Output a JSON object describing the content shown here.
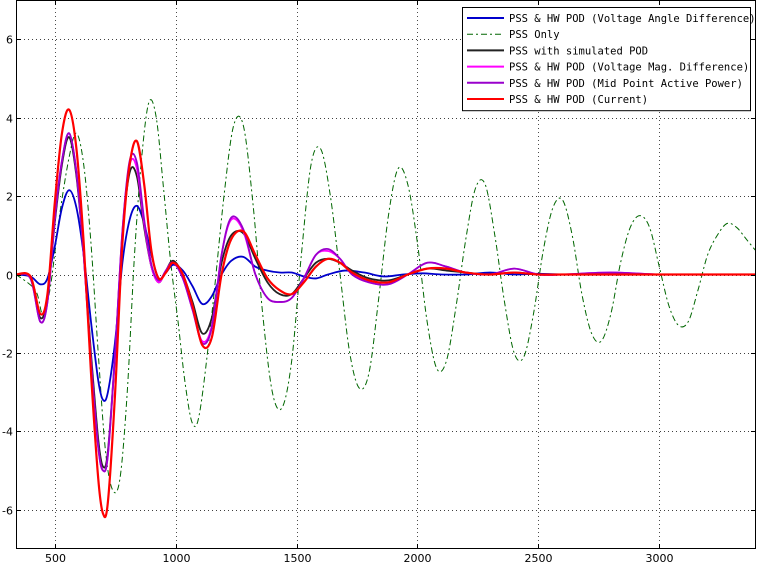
{
  "chart_data": {
    "type": "line",
    "title": "",
    "xlabel": "",
    "ylabel": "",
    "xlim": [
      340,
      3400
    ],
    "ylim": [
      -7,
      7
    ],
    "xticks": [
      500,
      1000,
      1500,
      2000,
      2500,
      3000
    ],
    "yticks": [
      -6,
      -4,
      -2,
      0,
      2,
      4,
      6
    ],
    "xtick_labels": [
      "500",
      "1000",
      "1500",
      "2000",
      "2500",
      "3000"
    ],
    "ytick_labels": [
      "-6",
      "-4",
      "-2",
      "0",
      "2",
      "4",
      "6"
    ],
    "grid": true,
    "legend_position": "top-right",
    "series": [
      {
        "name": "PSS & HW POD (Voltage Angle Difference)",
        "color": "#0000cc",
        "dash": "solid",
        "x": [
          340,
          400,
          440,
          470,
          500,
          530,
          560,
          590,
          620,
          650,
          680,
          700,
          720,
          750,
          780,
          810,
          840,
          870,
          900,
          930,
          960,
          990,
          1030,
          1070,
          1110,
          1150,
          1190,
          1230,
          1280,
          1330,
          1380,
          1430,
          1480,
          1530,
          1580,
          1630,
          1700,
          1780,
          1860,
          1940,
          2020,
          2100,
          2200,
          2300,
          2400,
          2500,
          2600,
          2800,
          3000,
          3200,
          3400
        ],
        "y": [
          0,
          -0.05,
          -0.25,
          -0.1,
          0.7,
          1.7,
          2.15,
          1.7,
          0.5,
          -1.2,
          -2.7,
          -3.2,
          -3.0,
          -1.7,
          0.3,
          1.4,
          1.75,
          1.3,
          0.5,
          -0.1,
          0.05,
          0.25,
          0.1,
          -0.3,
          -0.75,
          -0.55,
          0.0,
          0.35,
          0.45,
          0.2,
          0.1,
          0.05,
          0.05,
          -0.05,
          -0.1,
          0.0,
          0.1,
          0.05,
          -0.05,
          0.0,
          0.03,
          0.0,
          0.0,
          0.05,
          0.0,
          0.02,
          0.0,
          0.0,
          0.0,
          0.0,
          0.0
        ]
      },
      {
        "name": "PSS Only",
        "color": "#006600",
        "dash": "6,3,2,3",
        "x": [
          340,
          420,
          450,
          480,
          520,
          560,
          590,
          620,
          650,
          680,
          710,
          740,
          770,
          800,
          830,
          860,
          890,
          920,
          950,
          980,
          1010,
          1040,
          1070,
          1100,
          1150,
          1200,
          1240,
          1280,
          1320,
          1360,
          1400,
          1440,
          1480,
          1520,
          1560,
          1600,
          1640,
          1680,
          1720,
          1760,
          1800,
          1840,
          1880,
          1920,
          1960,
          2000,
          2040,
          2080,
          2120,
          2160,
          2200,
          2240,
          2280,
          2320,
          2360,
          2400,
          2440,
          2480,
          2520,
          2560,
          2600,
          2640,
          2680,
          2720,
          2760,
          2800,
          2840,
          2880,
          2920,
          2960,
          3000,
          3040,
          3080,
          3120,
          3160,
          3200,
          3240,
          3280,
          3320,
          3360,
          3400
        ],
        "y": [
          0,
          -0.4,
          -1.0,
          -0.4,
          1.5,
          3.0,
          3.6,
          2.8,
          0.8,
          -2.0,
          -4.5,
          -5.5,
          -5.2,
          -3.0,
          0.5,
          3.0,
          4.4,
          4.0,
          2.2,
          0.3,
          -1.2,
          -2.8,
          -3.8,
          -3.5,
          -1.0,
          2.0,
          3.8,
          3.8,
          1.8,
          -1.0,
          -3.0,
          -3.4,
          -2.2,
          0.5,
          2.8,
          3.2,
          2.0,
          0.0,
          -2.0,
          -2.9,
          -2.5,
          -0.6,
          1.5,
          2.7,
          2.3,
          0.8,
          -1.2,
          -2.4,
          -2.2,
          -0.8,
          0.9,
          2.2,
          2.3,
          1.0,
          -0.7,
          -2.0,
          -2.1,
          -1.0,
          0.6,
          1.7,
          1.9,
          1.0,
          -0.5,
          -1.5,
          -1.7,
          -1.0,
          0.3,
          1.2,
          1.5,
          1.2,
          0.2,
          -0.8,
          -1.3,
          -1.2,
          -0.4,
          0.5,
          1.0,
          1.3,
          1.2,
          0.9,
          0.6
        ]
      },
      {
        "name": "PSS with simulated POD",
        "color": "#222222",
        "dash": "solid",
        "x": [
          340,
          400,
          440,
          470,
          500,
          530,
          560,
          590,
          620,
          650,
          680,
          700,
          720,
          750,
          780,
          810,
          840,
          870,
          900,
          930,
          960,
          990,
          1030,
          1070,
          1110,
          1150,
          1190,
          1230,
          1280,
          1330,
          1380,
          1430,
          1480,
          1530,
          1580,
          1630,
          1680,
          1730,
          1800,
          1880,
          1960,
          2040,
          2120,
          2200,
          2300,
          2400,
          2500,
          2600,
          2800,
          3000,
          3200,
          3400
        ],
        "y": [
          0,
          -0.1,
          -1.1,
          -0.6,
          1.3,
          2.8,
          3.5,
          2.5,
          0.5,
          -2.0,
          -4.2,
          -4.9,
          -4.5,
          -2.0,
          1.0,
          2.6,
          2.5,
          1.2,
          0.2,
          -0.2,
          0.1,
          0.35,
          0.0,
          -0.7,
          -1.5,
          -1.1,
          0.3,
          1.0,
          1.05,
          0.4,
          -0.2,
          -0.5,
          -0.5,
          -0.1,
          0.3,
          0.4,
          0.3,
          0.1,
          -0.1,
          -0.15,
          0.0,
          0.15,
          0.1,
          0.05,
          0.0,
          0.05,
          0.0,
          0.0,
          0.0,
          0.0,
          0.0,
          0.0
        ]
      },
      {
        "name": "PSS & HW POD (Voltage Mag. Difference)",
        "color": "#ff00ff",
        "dash": "solid",
        "x": [
          340,
          400,
          440,
          470,
          500,
          530,
          560,
          590,
          620,
          650,
          680,
          700,
          720,
          750,
          780,
          810,
          840,
          870,
          900,
          930,
          960,
          990,
          1030,
          1070,
          1110,
          1150,
          1190,
          1230,
          1280,
          1330,
          1380,
          1430,
          1480,
          1530,
          1580,
          1630,
          1680,
          1730,
          1800,
          1880,
          1960,
          2040,
          2120,
          2200,
          2300,
          2400,
          2500,
          2600,
          2800,
          3000,
          3200,
          3400
        ],
        "y": [
          0,
          -0.1,
          -1.2,
          -0.7,
          1.4,
          2.9,
          3.6,
          2.6,
          0.5,
          -2.2,
          -4.4,
          -5.0,
          -4.6,
          -2.0,
          1.1,
          2.8,
          2.7,
          1.3,
          0.2,
          -0.2,
          0.1,
          0.3,
          -0.1,
          -0.9,
          -1.7,
          -1.3,
          0.5,
          1.4,
          1.1,
          0.0,
          -0.6,
          -0.7,
          -0.6,
          -0.1,
          0.5,
          0.6,
          0.4,
          0.0,
          -0.2,
          -0.25,
          0.0,
          0.3,
          0.2,
          0.05,
          0.0,
          0.15,
          0.0,
          0.0,
          0.05,
          0.0,
          0.0,
          0.0
        ]
      },
      {
        "name": "PSS & HW POD (Mid Point Active Power)",
        "color": "#9900cc",
        "dash": "solid",
        "x": [
          340,
          400,
          440,
          470,
          500,
          530,
          560,
          590,
          620,
          650,
          680,
          700,
          720,
          750,
          780,
          810,
          840,
          870,
          900,
          930,
          960,
          990,
          1030,
          1070,
          1110,
          1150,
          1190,
          1230,
          1280,
          1330,
          1380,
          1430,
          1480,
          1530,
          1580,
          1630,
          1680,
          1730,
          1800,
          1880,
          1960,
          2040,
          2120,
          2200,
          2300,
          2400,
          2500,
          2600,
          2800,
          3000,
          3200,
          3400
        ],
        "y": [
          0,
          -0.1,
          -1.2,
          -0.7,
          1.4,
          2.9,
          3.6,
          2.6,
          0.5,
          -2.2,
          -4.4,
          -5.0,
          -4.6,
          -2.0,
          1.1,
          2.9,
          2.85,
          1.4,
          0.25,
          -0.15,
          0.1,
          0.3,
          -0.1,
          -0.9,
          -1.75,
          -1.35,
          0.5,
          1.45,
          1.15,
          0.0,
          -0.6,
          -0.7,
          -0.6,
          -0.1,
          0.5,
          0.65,
          0.4,
          0.0,
          -0.2,
          -0.25,
          0.0,
          0.3,
          0.2,
          0.05,
          0.0,
          0.15,
          0.0,
          0.0,
          0.05,
          0.0,
          0.0,
          0.0
        ]
      },
      {
        "name": "PSS & HW POD (Current)",
        "color": "#ff0000",
        "dash": "solid",
        "x": [
          340,
          400,
          440,
          470,
          500,
          530,
          560,
          590,
          620,
          650,
          680,
          700,
          720,
          750,
          780,
          810,
          840,
          870,
          900,
          930,
          960,
          990,
          1030,
          1070,
          1110,
          1150,
          1190,
          1230,
          1280,
          1330,
          1380,
          1430,
          1480,
          1530,
          1580,
          1630,
          1680,
          1730,
          1800,
          1880,
          1960,
          2040,
          2120,
          2200,
          2300,
          2400,
          2500,
          2600,
          2800,
          3000,
          3200,
          3400
        ],
        "y": [
          0,
          -0.05,
          -1.0,
          -0.5,
          1.8,
          3.6,
          4.2,
          3.2,
          0.8,
          -2.5,
          -5.2,
          -6.1,
          -5.8,
          -3.0,
          0.8,
          2.8,
          3.4,
          2.3,
          0.6,
          -0.1,
          0.05,
          0.3,
          0.0,
          -0.8,
          -1.8,
          -1.6,
          0.0,
          0.9,
          1.1,
          0.5,
          -0.1,
          -0.4,
          -0.5,
          -0.2,
          0.2,
          0.4,
          0.3,
          0.05,
          -0.15,
          -0.2,
          0.0,
          0.15,
          0.15,
          0.05,
          0.0,
          0.05,
          0.0,
          0.0,
          0.0,
          0.0,
          0.0,
          0.0
        ]
      }
    ]
  }
}
